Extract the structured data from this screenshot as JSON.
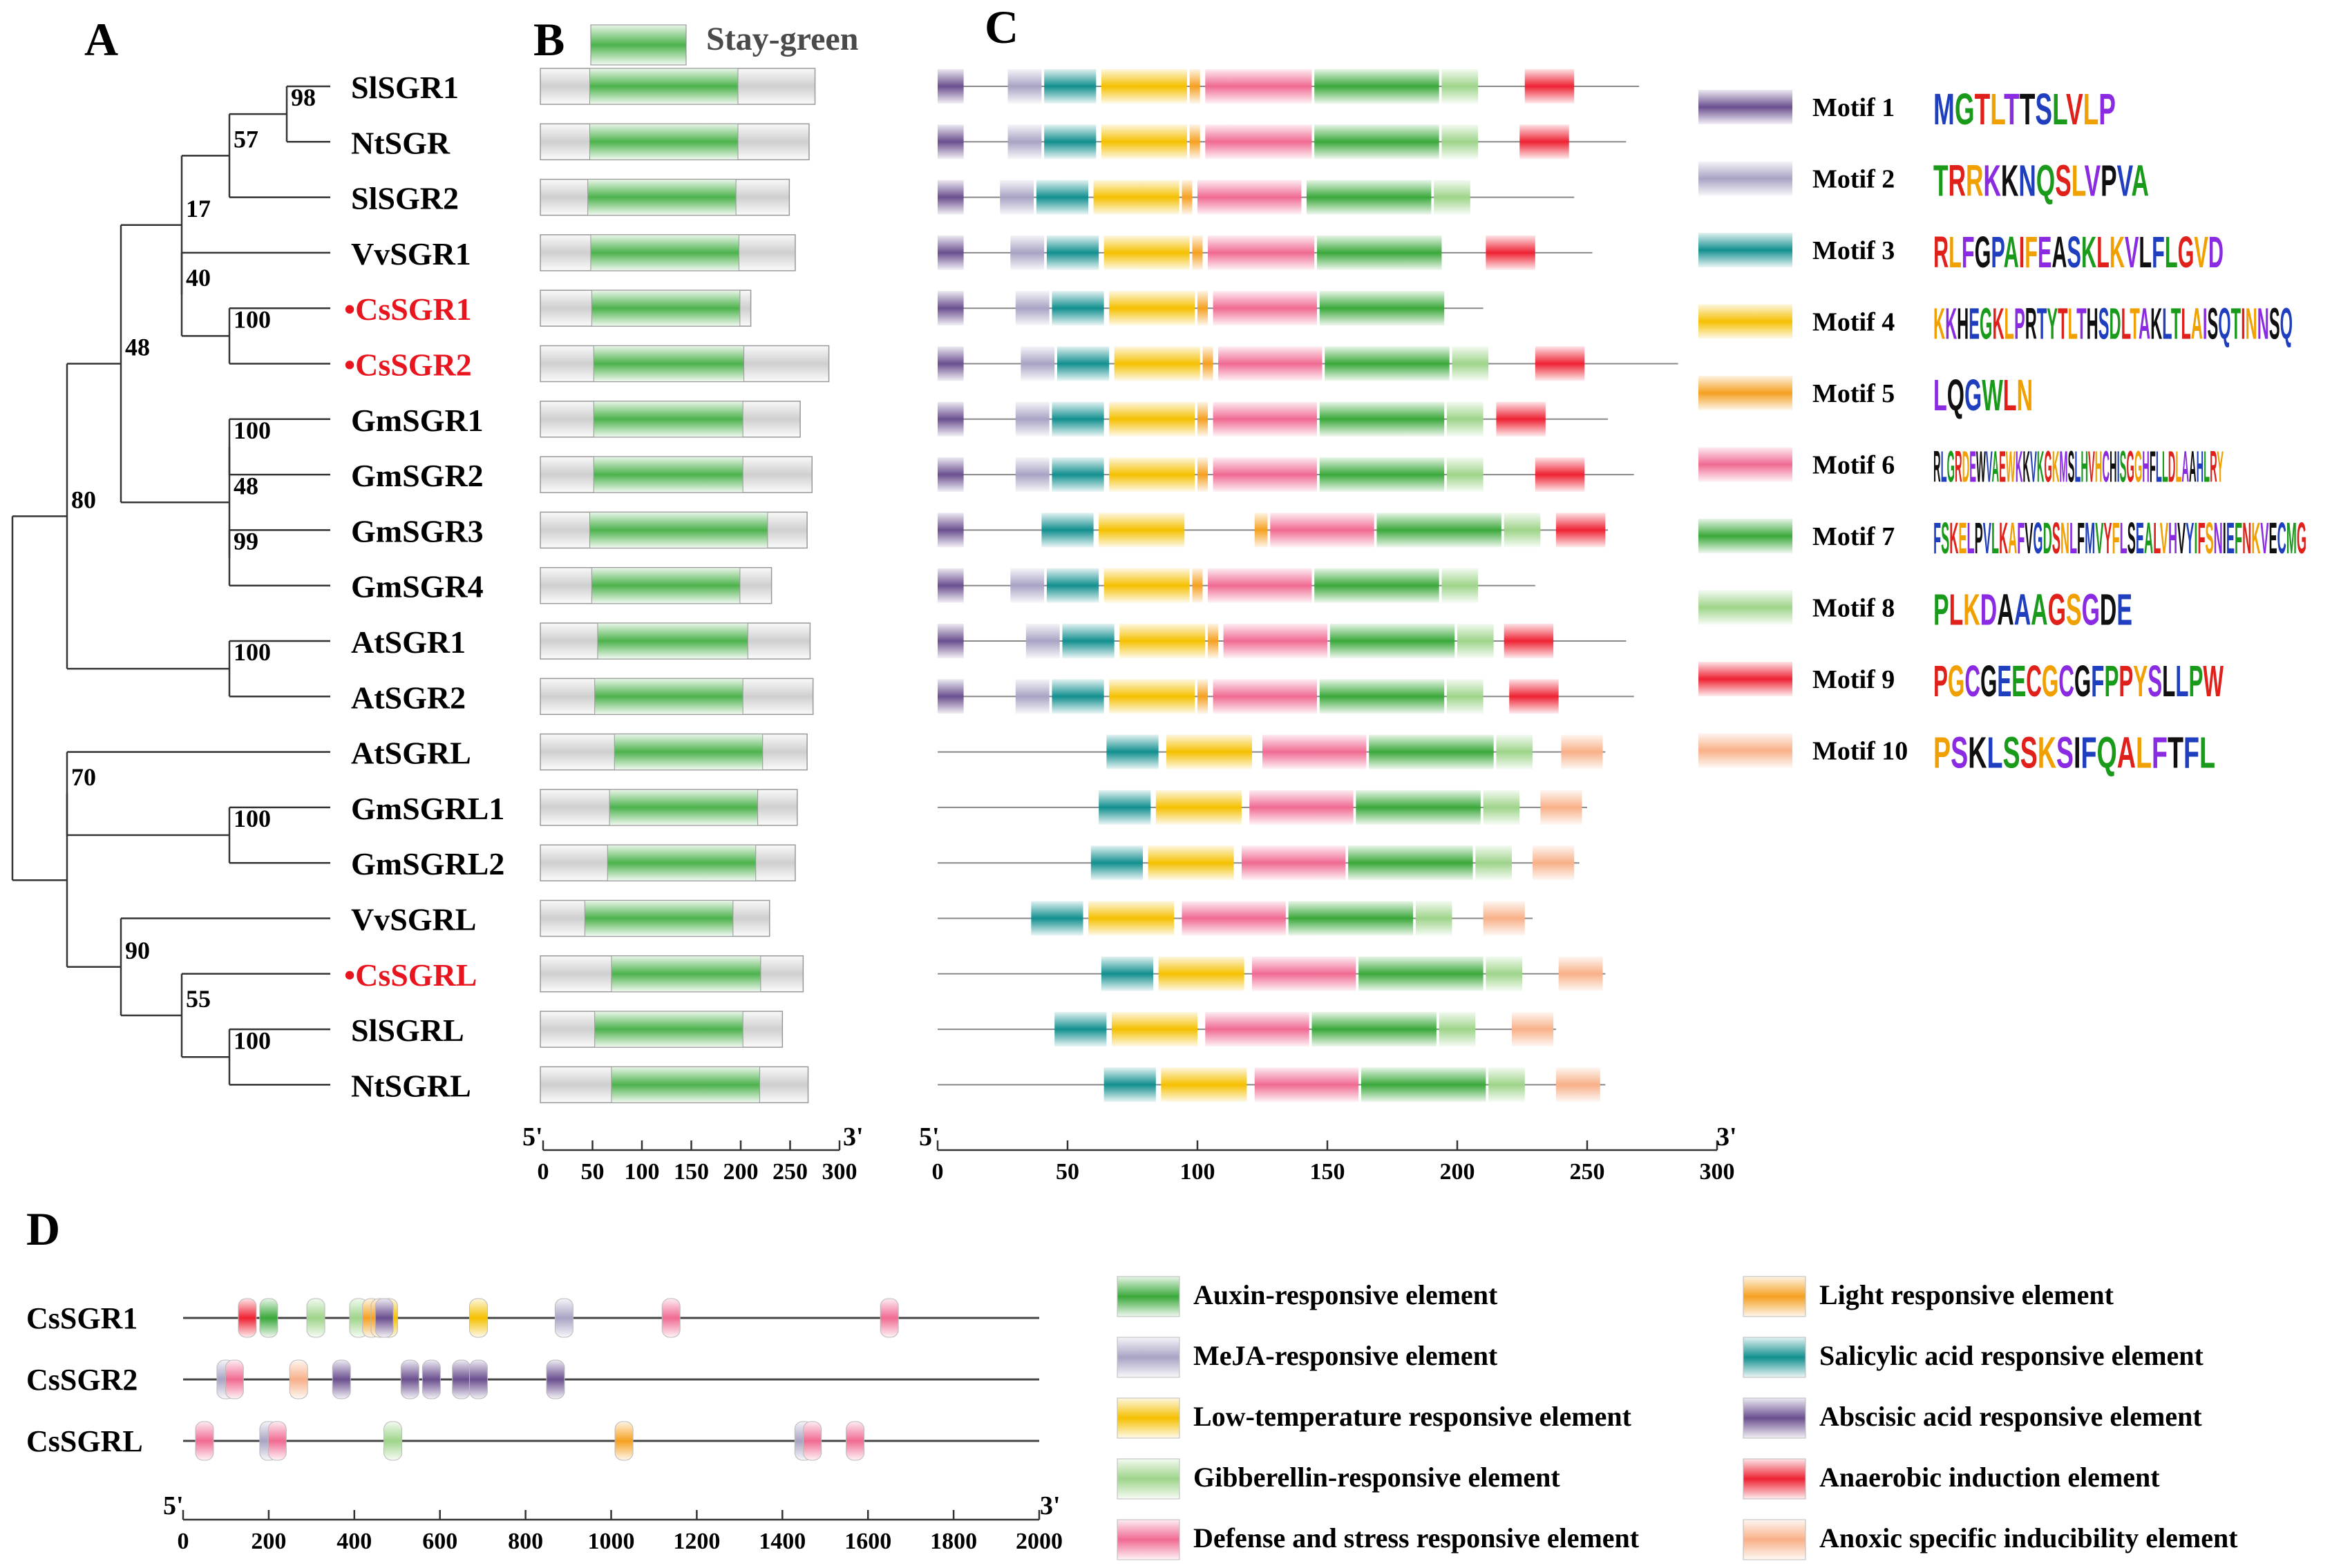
{
  "panels": {
    "a": "A",
    "b": "B",
    "c": "C",
    "d": "D"
  },
  "legend_b": "Stay-green",
  "genes": [
    {
      "name": "SlSGR1",
      "red": false
    },
    {
      "name": "NtSGR",
      "red": false
    },
    {
      "name": "SlSGR2",
      "red": false
    },
    {
      "name": "VvSGR1",
      "red": false
    },
    {
      "name": "•CsSGR1",
      "red": true
    },
    {
      "name": "•CsSGR2",
      "red": true
    },
    {
      "name": "GmSGR1",
      "red": false
    },
    {
      "name": "GmSGR2",
      "red": false
    },
    {
      "name": "GmSGR3",
      "red": false
    },
    {
      "name": "GmSGR4",
      "red": false
    },
    {
      "name": "AtSGR1",
      "red": false
    },
    {
      "name": "AtSGR2",
      "red": false
    },
    {
      "name": "AtSGRL",
      "red": false
    },
    {
      "name": "GmSGRL1",
      "red": false
    },
    {
      "name": "GmSGRL2",
      "red": false
    },
    {
      "name": "VvSGRL",
      "red": false
    },
    {
      "name": "•CsSGRL",
      "red": true
    },
    {
      "name": "SlSGRL",
      "red": false
    },
    {
      "name": "NtSGRL",
      "red": false
    }
  ],
  "bootstrap": [
    "98",
    "57",
    "17",
    "40",
    "100",
    "48",
    "100",
    "48",
    "99",
    "100",
    "80",
    "100",
    "70",
    "90",
    "55",
    "100"
  ],
  "domains_b": [
    {
      "len": 278,
      "s": 50,
      "e": 200
    },
    {
      "len": 272,
      "s": 50,
      "e": 200
    },
    {
      "len": 252,
      "s": 48,
      "e": 198
    },
    {
      "len": 258,
      "s": 51,
      "e": 201
    },
    {
      "len": 213,
      "s": 52,
      "e": 202
    },
    {
      "len": 292,
      "s": 54,
      "e": 206
    },
    {
      "len": 263,
      "s": 54,
      "e": 205
    },
    {
      "len": 275,
      "s": 54,
      "e": 205
    },
    {
      "len": 270,
      "s": 50,
      "e": 230
    },
    {
      "len": 234,
      "s": 52,
      "e": 202
    },
    {
      "len": 273,
      "s": 58,
      "e": 210
    },
    {
      "len": 276,
      "s": 55,
      "e": 205
    },
    {
      "len": 270,
      "s": 75,
      "e": 225
    },
    {
      "len": 260,
      "s": 70,
      "e": 220
    },
    {
      "len": 258,
      "s": 68,
      "e": 218
    },
    {
      "len": 232,
      "s": 45,
      "e": 195
    },
    {
      "len": 266,
      "s": 72,
      "e": 223
    },
    {
      "len": 245,
      "s": 55,
      "e": 205
    },
    {
      "len": 271,
      "s": 72,
      "e": 222
    }
  ],
  "motifs_c": [
    {
      "len": 270,
      "m": [
        [
          1,
          0,
          10
        ],
        [
          2,
          27,
          40
        ],
        [
          3,
          41,
          61
        ],
        [
          4,
          63,
          96
        ],
        [
          5,
          97,
          101
        ],
        [
          6,
          103,
          144
        ],
        [
          7,
          145,
          193
        ],
        [
          8,
          194,
          208
        ],
        [
          9,
          226,
          245
        ]
      ]
    },
    {
      "len": 265,
      "m": [
        [
          1,
          0,
          10
        ],
        [
          2,
          27,
          40
        ],
        [
          3,
          41,
          61
        ],
        [
          4,
          63,
          96
        ],
        [
          5,
          97,
          101
        ],
        [
          6,
          103,
          144
        ],
        [
          7,
          145,
          193
        ],
        [
          8,
          194,
          208
        ],
        [
          9,
          224,
          243
        ]
      ]
    },
    {
      "len": 245,
      "m": [
        [
          1,
          0,
          10
        ],
        [
          2,
          24,
          37
        ],
        [
          3,
          38,
          58
        ],
        [
          4,
          60,
          93
        ],
        [
          5,
          94,
          98
        ],
        [
          6,
          100,
          140
        ],
        [
          7,
          142,
          190
        ],
        [
          8,
          191,
          205
        ]
      ]
    },
    {
      "len": 252,
      "m": [
        [
          1,
          0,
          10
        ],
        [
          2,
          28,
          41
        ],
        [
          3,
          42,
          62
        ],
        [
          4,
          64,
          97
        ],
        [
          5,
          98,
          102
        ],
        [
          6,
          104,
          145
        ],
        [
          7,
          146,
          194
        ],
        [
          9,
          211,
          230
        ]
      ]
    },
    {
      "len": 210,
      "m": [
        [
          1,
          0,
          10
        ],
        [
          2,
          30,
          43
        ],
        [
          3,
          44,
          64
        ],
        [
          4,
          66,
          99
        ],
        [
          5,
          100,
          104
        ],
        [
          6,
          106,
          146
        ],
        [
          7,
          147,
          195
        ]
      ]
    },
    {
      "len": 285,
      "m": [
        [
          1,
          0,
          10
        ],
        [
          2,
          32,
          45
        ],
        [
          3,
          46,
          66
        ],
        [
          4,
          68,
          101
        ],
        [
          5,
          102,
          106
        ],
        [
          6,
          108,
          148
        ],
        [
          7,
          149,
          197
        ],
        [
          8,
          198,
          212
        ],
        [
          9,
          230,
          249
        ]
      ]
    },
    {
      "len": 258,
      "m": [
        [
          1,
          0,
          10
        ],
        [
          2,
          30,
          43
        ],
        [
          3,
          44,
          64
        ],
        [
          4,
          66,
          99
        ],
        [
          5,
          100,
          104
        ],
        [
          6,
          106,
          146
        ],
        [
          7,
          147,
          195
        ],
        [
          8,
          196,
          210
        ],
        [
          9,
          215,
          234
        ]
      ]
    },
    {
      "len": 268,
      "m": [
        [
          1,
          0,
          10
        ],
        [
          2,
          30,
          43
        ],
        [
          3,
          44,
          64
        ],
        [
          4,
          66,
          99
        ],
        [
          5,
          100,
          104
        ],
        [
          6,
          106,
          146
        ],
        [
          7,
          147,
          195
        ],
        [
          8,
          196,
          210
        ],
        [
          9,
          230,
          249
        ]
      ]
    },
    {
      "len": 258,
      "m": [
        [
          1,
          0,
          10
        ],
        [
          3,
          40,
          60
        ],
        [
          4,
          62,
          95
        ],
        [
          5,
          122,
          127
        ],
        [
          6,
          128,
          168
        ],
        [
          7,
          169,
          217
        ],
        [
          8,
          218,
          232
        ],
        [
          9,
          238,
          257
        ]
      ]
    },
    {
      "len": 230,
      "m": [
        [
          1,
          0,
          10
        ],
        [
          2,
          28,
          41
        ],
        [
          3,
          42,
          62
        ],
        [
          4,
          64,
          97
        ],
        [
          5,
          98,
          102
        ],
        [
          6,
          104,
          144
        ],
        [
          7,
          145,
          193
        ],
        [
          8,
          194,
          208
        ]
      ]
    },
    {
      "len": 265,
      "m": [
        [
          1,
          0,
          10
        ],
        [
          2,
          34,
          47
        ],
        [
          3,
          48,
          68
        ],
        [
          4,
          70,
          103
        ],
        [
          5,
          104,
          108
        ],
        [
          6,
          110,
          150
        ],
        [
          7,
          151,
          199
        ],
        [
          8,
          200,
          214
        ],
        [
          9,
          218,
          237
        ]
      ]
    },
    {
      "len": 268,
      "m": [
        [
          1,
          0,
          10
        ],
        [
          2,
          30,
          43
        ],
        [
          3,
          44,
          64
        ],
        [
          4,
          66,
          99
        ],
        [
          5,
          100,
          104
        ],
        [
          6,
          106,
          146
        ],
        [
          7,
          147,
          195
        ],
        [
          8,
          196,
          210
        ],
        [
          9,
          220,
          239
        ]
      ]
    },
    {
      "len": 257,
      "m": [
        [
          3,
          65,
          85
        ],
        [
          4,
          88,
          121
        ],
        [
          6,
          125,
          165
        ],
        [
          7,
          166,
          214
        ],
        [
          8,
          215,
          229
        ],
        [
          10,
          240,
          256
        ]
      ]
    },
    {
      "len": 250,
      "m": [
        [
          3,
          62,
          82
        ],
        [
          4,
          84,
          117
        ],
        [
          6,
          120,
          160
        ],
        [
          7,
          161,
          209
        ],
        [
          8,
          210,
          224
        ],
        [
          10,
          232,
          248
        ]
      ]
    },
    {
      "len": 247,
      "m": [
        [
          3,
          59,
          79
        ],
        [
          4,
          81,
          114
        ],
        [
          6,
          117,
          157
        ],
        [
          7,
          158,
          206
        ],
        [
          8,
          207,
          221
        ],
        [
          10,
          229,
          245
        ]
      ]
    },
    {
      "len": 229,
      "m": [
        [
          3,
          36,
          56
        ],
        [
          4,
          58,
          91
        ],
        [
          6,
          94,
          134
        ],
        [
          7,
          135,
          183
        ],
        [
          8,
          184,
          198
        ],
        [
          10,
          210,
          226
        ]
      ]
    },
    {
      "len": 257,
      "m": [
        [
          3,
          63,
          83
        ],
        [
          4,
          85,
          118
        ],
        [
          6,
          121,
          161
        ],
        [
          7,
          162,
          210
        ],
        [
          8,
          211,
          225
        ],
        [
          10,
          239,
          256
        ]
      ]
    },
    {
      "len": 238,
      "m": [
        [
          3,
          45,
          65
        ],
        [
          4,
          67,
          100
        ],
        [
          6,
          103,
          143
        ],
        [
          7,
          144,
          192
        ],
        [
          8,
          193,
          207
        ],
        [
          10,
          221,
          237
        ]
      ]
    },
    {
      "len": 257,
      "m": [
        [
          3,
          64,
          84
        ],
        [
          4,
          86,
          119
        ],
        [
          6,
          122,
          162
        ],
        [
          7,
          163,
          211
        ],
        [
          8,
          212,
          226
        ],
        [
          10,
          238,
          255
        ]
      ]
    }
  ],
  "axis": {
    "start": "5'",
    "end": "3'",
    "ticks_300": [
      "0",
      "50",
      "100",
      "150",
      "200",
      "250",
      "300"
    ],
    "ticks_2000": [
      "0",
      "200",
      "400",
      "600",
      "800",
      "1000",
      "1200",
      "1400",
      "1600",
      "1800",
      "2000"
    ]
  },
  "motif_legend": [
    "Motif 1",
    "Motif 2",
    "Motif 3",
    "Motif 4",
    "Motif 5",
    "Motif 6",
    "Motif 7",
    "Motif 8",
    "Motif 9",
    "Motif 10"
  ],
  "motif_logos": [
    "MGTLTTSLVLP",
    "TRRKKNQSLVPVA",
    "RLFGPAIFEASKLKVLFLGVD",
    "KKHEGKLPRTYTLTHSDLTAKLTLAISQTINNSQ",
    "LQGWLN",
    "RLGRDEWVAEWKKVKGKMSLHVHCHISGGHFLLDLAAHLRY",
    "FSKELPVLKAFVGDSNLFMVYFLSEALVHVYIFSNIEFNKVECMG",
    "PLKDAAAGSGDE",
    "PGCGEECGCGFPPYSLLPW",
    "PSKLSSKSIFQALFTFL"
  ],
  "promoters": [
    {
      "name": "CsSGR1",
      "el": [
        [
          9,
          150
        ],
        [
          1,
          200
        ],
        [
          4,
          310
        ],
        [
          4,
          410
        ],
        [
          6,
          440
        ],
        [
          6,
          460
        ],
        [
          3,
          480
        ],
        [
          8,
          470
        ],
        [
          3,
          690
        ],
        [
          2,
          890
        ],
        [
          5,
          1140
        ],
        [
          5,
          1650
        ]
      ]
    },
    {
      "name": "CsSGR2",
      "el": [
        [
          2,
          100
        ],
        [
          5,
          120
        ],
        [
          10,
          270
        ],
        [
          8,
          370
        ],
        [
          8,
          530
        ],
        [
          8,
          580
        ],
        [
          8,
          650
        ],
        [
          8,
          690
        ],
        [
          8,
          870
        ]
      ]
    },
    {
      "name": "CsSGRL",
      "el": [
        [
          5,
          50
        ],
        [
          2,
          200
        ],
        [
          5,
          220
        ],
        [
          4,
          490
        ],
        [
          6,
          1030
        ],
        [
          2,
          1450
        ],
        [
          5,
          1470
        ],
        [
          5,
          1570
        ]
      ]
    }
  ],
  "element_legend": [
    "Auxin-responsive element",
    "MeJA-responsive element",
    "Low-temperature responsive element",
    "Gibberellin-responsive element",
    "Defense and stress responsive element",
    "Light responsive element",
    "Salicylic acid responsive element",
    "Abscisic acid responsive element",
    "Anaerobic induction element",
    "Anoxic specific inducibility element"
  ],
  "colors": {
    "motif": [
      "#6a4f8f",
      "#a9a3c4",
      "#128f8f",
      "#f5c000",
      "#f5a020",
      "#f06a92",
      "#3aa83a",
      "#9ed48a",
      "#ee2233",
      "#f8b088"
    ],
    "element": [
      "#3aa83a",
      "#a9a3c4",
      "#f5c000",
      "#9ed48a",
      "#f06a92",
      "#f5a020",
      "#128f8f",
      "#6a4f8f",
      "#ee2233",
      "#f8b088"
    ],
    "domain": "#4cb24c",
    "protein": "#cfcfcf",
    "highlight": "#e8141e"
  }
}
